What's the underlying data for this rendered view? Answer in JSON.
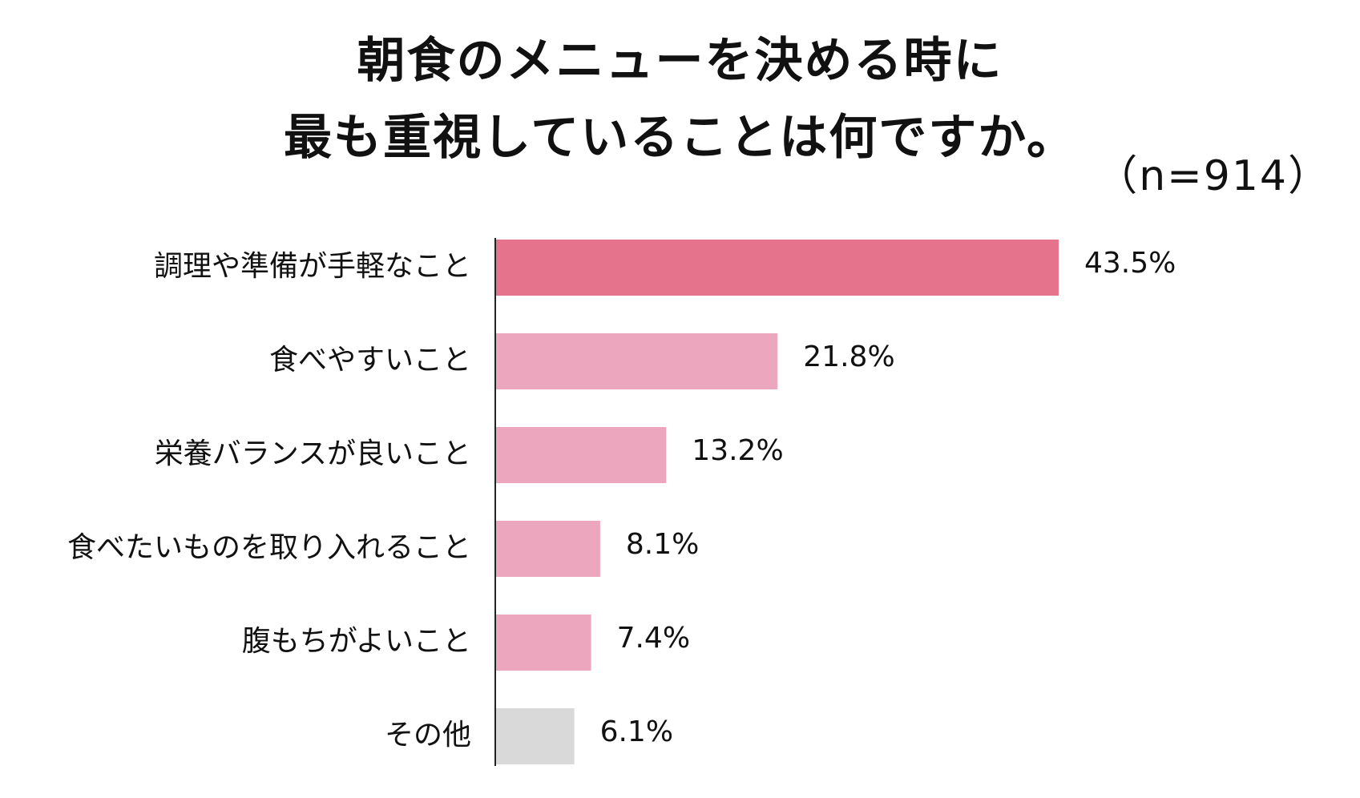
{
  "chart_data": {
    "type": "bar",
    "orientation": "horizontal",
    "title_lines": [
      "朝食のメニューを決める時に",
      "最も重視していることは何ですか。"
    ],
    "sample_size": "（n=914）",
    "categories": [
      "調理や準備が手軽なこと",
      "食べやすいこと",
      "栄養バランスが良いこと",
      "食べたいものを取り入れること",
      "腹もちがよいこと",
      "その他"
    ],
    "values": [
      43.5,
      21.8,
      13.2,
      8.1,
      7.4,
      6.1
    ],
    "value_labels": [
      "43.5%",
      "21.8%",
      "13.2%",
      "8.1%",
      "7.4%",
      "6.1%"
    ],
    "unit": "%",
    "xlim": [
      0,
      50
    ],
    "grid": false,
    "legend": "none",
    "colors": {
      "highlight": "#e5738c",
      "default": "#eca6bd",
      "other": "#d9d9d9",
      "axis": "#222222"
    }
  }
}
